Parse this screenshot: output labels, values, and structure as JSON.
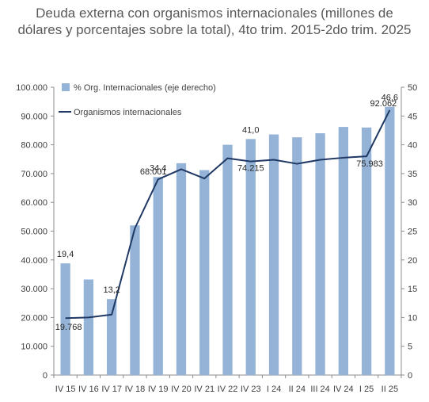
{
  "chart_data": {
    "type": "bar+line",
    "title": "Deuda externa con organismos internacionales (millones de dólares y porcentajes sobre la total), 4to trim. 2015-2do trim. 2025",
    "categories": [
      "IV 15",
      "IV 16",
      "IV 17",
      "IV 18",
      "IV 19",
      "IV 20",
      "IV 21",
      "IV 22",
      "IV 23",
      "I 24",
      "II 24",
      "III 24",
      "IV 24",
      "I 25",
      "II 25"
    ],
    "series": [
      {
        "name": "% Org. Internacionales (eje derecho)",
        "type": "bar",
        "axis": "right",
        "color": "#95B3D7",
        "values": [
          19.4,
          16.6,
          13.2,
          26.0,
          34.4,
          36.8,
          35.6,
          40.0,
          41.0,
          41.8,
          41.3,
          42.0,
          43.1,
          43.0,
          46.6
        ],
        "data_labels": [
          "19,4",
          "",
          "13,2",
          "",
          "34,4",
          "",
          "",
          "",
          "41,0",
          "",
          "",
          "",
          "",
          "",
          "46,6"
        ]
      },
      {
        "name": "Organismos internacionales",
        "type": "line",
        "axis": "left",
        "color": "#1F3864",
        "values": [
          19768,
          20000,
          21000,
          51000,
          68001,
          71500,
          68300,
          75300,
          74215,
          74800,
          73400,
          74800,
          75500,
          75983,
          92062
        ],
        "data_labels": [
          "19.768",
          "",
          "",
          "",
          "68.001",
          "",
          "",
          "",
          "74.215",
          "",
          "",
          "",
          "",
          "75.983",
          "92.062"
        ]
      }
    ],
    "y_left": {
      "ylim": [
        0,
        100000
      ],
      "ticks": [
        0,
        10000,
        20000,
        30000,
        40000,
        50000,
        60000,
        70000,
        80000,
        90000,
        100000
      ],
      "tick_labels": [
        "0",
        "10.000",
        "20.000",
        "30.000",
        "40.000",
        "50.000",
        "60.000",
        "70.000",
        "80.000",
        "90.000",
        "100.000"
      ]
    },
    "y_right": {
      "ylim": [
        0,
        50
      ],
      "ticks": [
        0,
        5,
        10,
        15,
        20,
        25,
        30,
        35,
        40,
        45,
        50
      ],
      "tick_labels": [
        "0",
        "5",
        "10",
        "15",
        "20",
        "25",
        "30",
        "35",
        "40",
        "45",
        "50"
      ]
    },
    "legend_position": "top-left",
    "grid": false
  }
}
